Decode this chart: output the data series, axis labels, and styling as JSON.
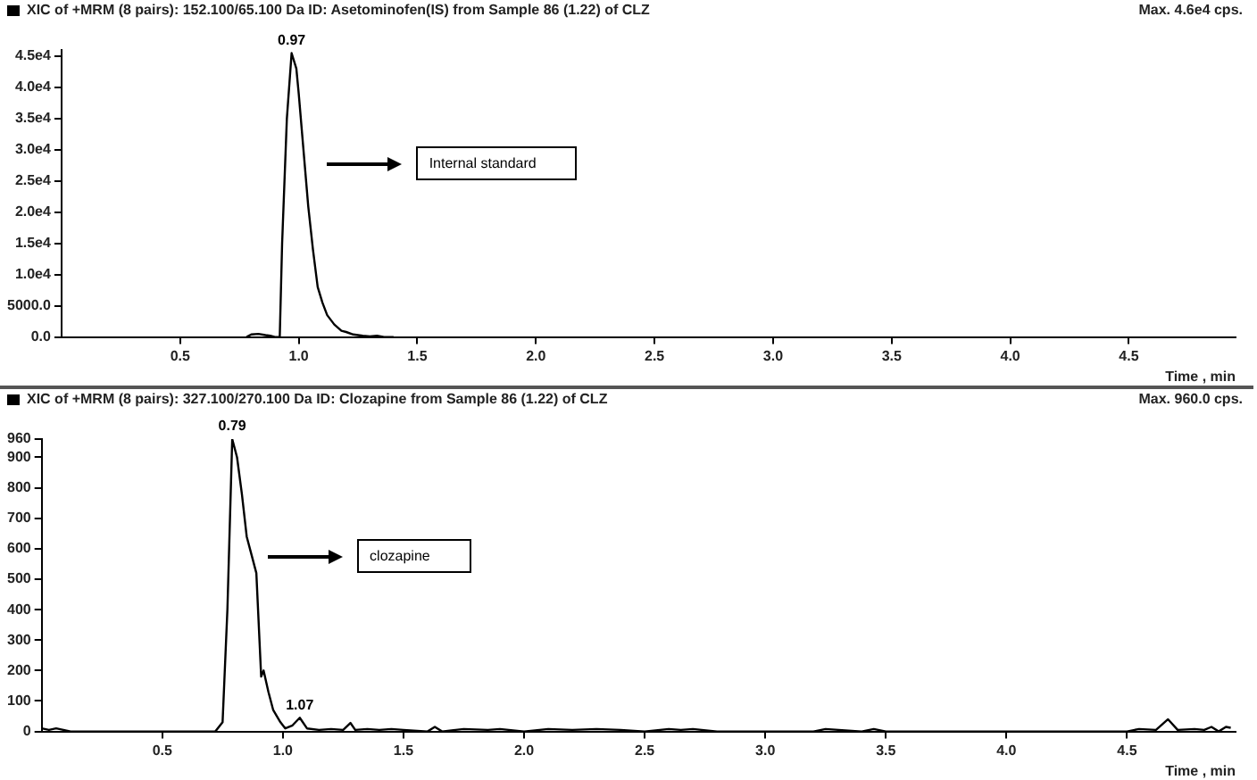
{
  "chart_data": [
    {
      "type": "line",
      "title": "XIC of +MRM (8 pairs): 152.100/65.100 Da ID: Asetominofen(IS) from Sample 86 (1.22) of CLZ",
      "xlabel": "Time , min",
      "color": "#000000",
      "marker": "none",
      "x": [
        0.78,
        0.8,
        0.83,
        0.86,
        0.88,
        0.9,
        0.92,
        0.93,
        0.95,
        0.97,
        0.99,
        1.0,
        1.02,
        1.04,
        1.06,
        1.08,
        1.1,
        1.12,
        1.15,
        1.18,
        1.2,
        1.23,
        1.27,
        1.3,
        1.33,
        1.36,
        1.4
      ],
      "values": [
        0,
        400,
        500,
        300,
        200,
        0,
        0,
        15000,
        35000,
        45500,
        43000,
        39000,
        30000,
        21000,
        14000,
        8000,
        5500,
        3500,
        2000,
        1000,
        800,
        400,
        200,
        100,
        200,
        0,
        0
      ],
      "xlim": [
        0,
        4.95
      ],
      "xticks": [
        0.5,
        {
          "value": 1,
          "label": "1.0"
        },
        1.5,
        {
          "value": 2,
          "label": "2.0"
        },
        2.5,
        {
          "value": 3,
          "label": "3.0"
        },
        3.5,
        {
          "value": 4,
          "label": "4.0"
        },
        4.5
      ],
      "ylim": [
        0,
        46000
      ],
      "yticks": [
        {
          "value": 0,
          "label": "0.0"
        },
        {
          "value": 5000,
          "label": "5000.0"
        },
        {
          "value": 10000,
          "label": "1.0e4"
        },
        {
          "value": 15000,
          "label": "1.5e4"
        },
        {
          "value": 20000,
          "label": "2.0e4"
        },
        {
          "value": 25000,
          "label": "2.5e4"
        },
        {
          "value": 30000,
          "label": "3.0e4"
        },
        {
          "value": 35000,
          "label": "3.5e4"
        },
        {
          "value": 40000,
          "label": "4.0e4"
        },
        {
          "value": 45000,
          "label": "4.5e4"
        }
      ],
      "grid": false,
      "legend": false,
      "annotations": [
        "Max. 4.6e4 cps.",
        "Internal standard",
        {
          "text": "0.97",
          "x": 0.97,
          "y": 45500
        }
      ]
    },
    {
      "type": "line",
      "title": "XIC of +MRM (8 pairs): 327.100/270.100 Da ID: Clozapine from Sample 86 (1.22) of CLZ",
      "xlabel": "Time , min",
      "color": "#000000",
      "marker": "none",
      "x": [
        0.0,
        0.03,
        0.06,
        0.09,
        0.12,
        0.2,
        0.4,
        0.6,
        0.72,
        0.75,
        0.77,
        0.79,
        0.81,
        0.83,
        0.85,
        0.87,
        0.89,
        0.9,
        0.91,
        0.92,
        0.94,
        0.96,
        0.99,
        1.01,
        1.04,
        1.07,
        1.1,
        1.15,
        1.2,
        1.25,
        1.28,
        1.3,
        1.35,
        1.4,
        1.45,
        1.5,
        1.6,
        1.63,
        1.66,
        1.75,
        1.85,
        1.9,
        2.0,
        2.1,
        2.2,
        2.3,
        2.4,
        2.5,
        2.6,
        2.65,
        2.7,
        2.8,
        3.0,
        3.2,
        3.25,
        3.4,
        3.45,
        3.5,
        3.7,
        4.0,
        4.3,
        4.5,
        4.55,
        4.62,
        4.67,
        4.71,
        4.78,
        4.82,
        4.85,
        4.88,
        4.91,
        4.93
      ],
      "values": [
        10,
        5,
        10,
        5,
        0,
        0,
        0,
        0,
        0,
        30,
        400,
        960,
        900,
        780,
        640,
        580,
        520,
        350,
        180,
        200,
        130,
        70,
        30,
        10,
        20,
        45,
        10,
        5,
        8,
        5,
        28,
        5,
        8,
        5,
        8,
        5,
        0,
        15,
        0,
        8,
        5,
        8,
        0,
        8,
        5,
        8,
        5,
        0,
        8,
        5,
        8,
        0,
        0,
        0,
        8,
        0,
        8,
        0,
        0,
        0,
        0,
        0,
        8,
        5,
        40,
        5,
        8,
        5,
        15,
        0,
        15,
        12
      ],
      "xlim": [
        0,
        4.95
      ],
      "xticks": [
        0.5,
        {
          "value": 1,
          "label": "1.0"
        },
        1.5,
        {
          "value": 2,
          "label": "2.0"
        },
        2.5,
        {
          "value": 3,
          "label": "3.0"
        },
        3.5,
        {
          "value": 4,
          "label": "4.0"
        },
        4.5
      ],
      "ylim": [
        0,
        960
      ],
      "yticks": [
        0,
        100,
        200,
        300,
        400,
        500,
        600,
        700,
        800,
        900,
        960
      ],
      "grid": false,
      "legend": false,
      "annotations": [
        "Max. 960.0 cps.",
        "clozapine",
        {
          "text": "0.79",
          "x": 0.79,
          "y": 960
        },
        {
          "text": "1.07",
          "x": 1.07,
          "y": 45
        }
      ]
    }
  ]
}
